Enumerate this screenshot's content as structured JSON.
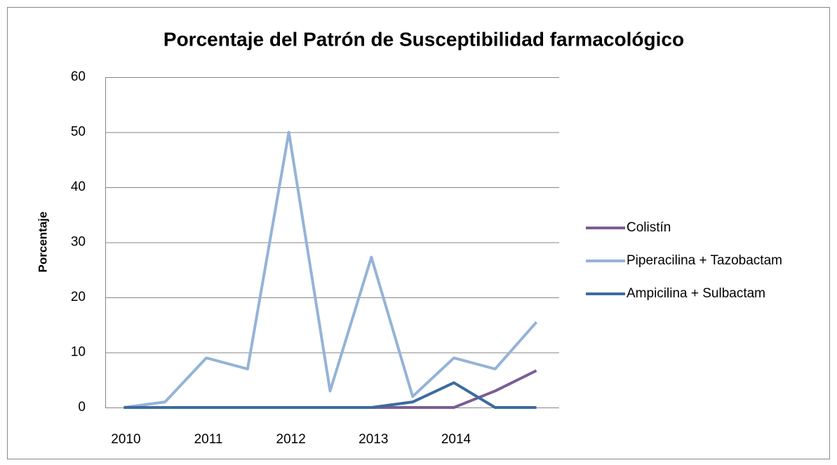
{
  "chart_data": {
    "type": "line",
    "title": "Porcentaje del Patrón de Susceptibilidad  farmacológico",
    "y_label": "Porcentaje",
    "categories": [
      "2010",
      null,
      "2011",
      null,
      "2012",
      null,
      "2013",
      null,
      "2014",
      null,
      null
    ],
    "series": [
      {
        "name": "Colistín",
        "color": "#7a5e94",
        "values": [
          0,
          0,
          0,
          0,
          0,
          0,
          0,
          0,
          0,
          3,
          6.7
        ]
      },
      {
        "name": "Piperacilina + Tazobactam",
        "color": "#95b3d7",
        "values": [
          0,
          1,
          9,
          7,
          50,
          3,
          27.3,
          2,
          9,
          7,
          15.5
        ]
      },
      {
        "name": "Ampicilina + Sulbactam",
        "color": "#3c6b9e",
        "values": [
          0,
          0,
          0,
          0,
          0,
          0,
          0,
          1,
          4.5,
          0,
          0
        ]
      }
    ],
    "ylim": [
      0,
      60
    ],
    "yticks": [
      0,
      10,
      20,
      30,
      40,
      50,
      60
    ],
    "grid": true,
    "legend": "right"
  }
}
